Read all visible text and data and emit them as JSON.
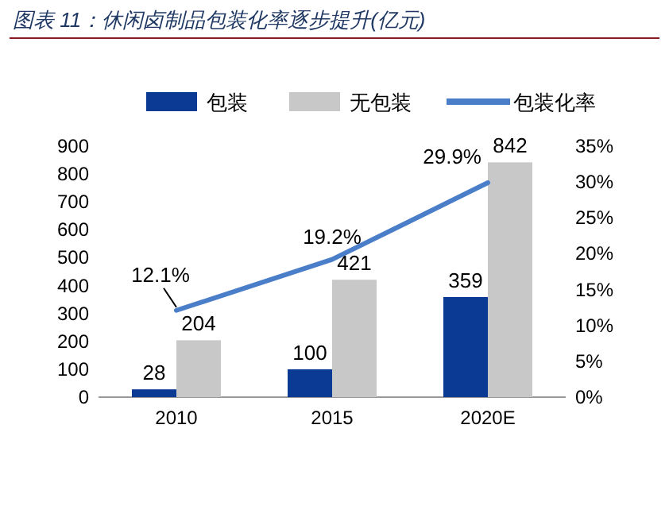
{
  "chart_data": {
    "type": "bar",
    "title": "图表 11：休闲卤制品包装化率逐步提升(亿元)",
    "categories": [
      "2010",
      "2015",
      "2020E"
    ],
    "series": [
      {
        "name": "包装",
        "color": "#0a3a94",
        "values": [
          28,
          100,
          359
        ],
        "value_labels": [
          "28",
          "100",
          "359"
        ]
      },
      {
        "name": "无包装",
        "color": "#c8c8c8",
        "values": [
          204,
          421,
          842
        ],
        "value_labels": [
          "204",
          "421",
          "842"
        ]
      },
      {
        "name": "包装化率",
        "type": "line",
        "axis": "y2",
        "color": "#4a7ec8",
        "values": [
          12.1,
          19.2,
          29.9
        ],
        "value_labels": [
          "12.1%",
          "19.2%",
          "29.9%"
        ]
      }
    ],
    "ylim": [
      0,
      900
    ],
    "yticks": [
      0,
      100,
      200,
      300,
      400,
      500,
      600,
      700,
      800,
      900
    ],
    "y2lim": [
      0,
      35
    ],
    "y2ticks": [
      {
        "value": 0,
        "label": "0%"
      },
      {
        "value": 5,
        "label": "5%"
      },
      {
        "value": 10,
        "label": "10%"
      },
      {
        "value": 15,
        "label": "15%"
      },
      {
        "value": 20,
        "label": "20%"
      },
      {
        "value": 25,
        "label": "25%"
      },
      {
        "value": 30,
        "label": "30%"
      },
      {
        "value": 35,
        "label": "35%"
      }
    ],
    "legend": "top",
    "grid": false
  }
}
